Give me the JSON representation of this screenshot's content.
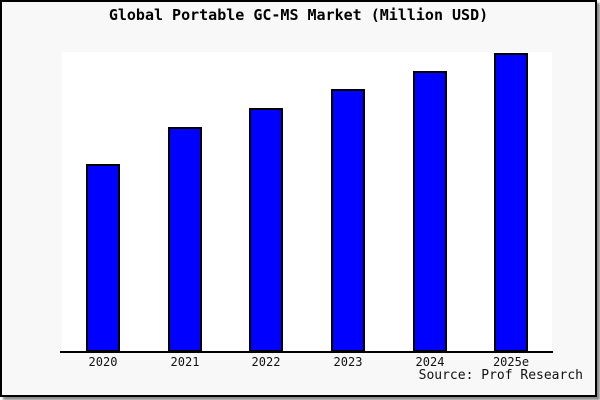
{
  "frame": {
    "background_color": "#f8f8f8",
    "border_color": "#000000",
    "plot_background_color": "#ffffff"
  },
  "title": "Global Portable GC-MS Market (Million USD)",
  "source": "Source: Prof Research",
  "chart_data": {
    "type": "bar",
    "title": "Global Portable GC-MS Market (Million USD)",
    "categories": [
      "2020",
      "2021",
      "2022",
      "2023",
      "2024",
      "2025e"
    ],
    "values": [
      62.9,
      75.3,
      81.6,
      88.0,
      94.0,
      100.0
    ],
    "value_scale_note": "no y-axis tick labels or gridlines shown; values are relative bar heights estimated from pixels, normalized so 2025e = 100",
    "xlabel": "",
    "ylabel": "",
    "grid": false,
    "legend": "none",
    "bar_color": "#0000fe",
    "bar_border_color": "#000000",
    "axis_line_color": "#000000",
    "source": "Source: Prof Research"
  }
}
